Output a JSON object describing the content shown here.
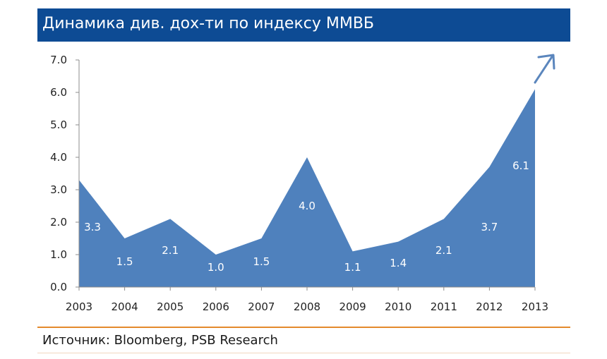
{
  "header": {
    "title": "Динамика див. дох-ти по индексу ММВБ"
  },
  "footer": {
    "source": "Источник: Bloomberg, PSB Research"
  },
  "colors": {
    "header_bg": "#0d4b94",
    "area_fill": "#4f81bd",
    "divider": "#e48a2c",
    "arrow": "#5b86bd"
  },
  "chart_data": {
    "type": "area",
    "categories": [
      "2003",
      "2004",
      "2005",
      "2006",
      "2007",
      "2008",
      "2009",
      "2010",
      "2011",
      "2012",
      "2013"
    ],
    "values": [
      3.3,
      1.5,
      2.1,
      1.0,
      1.5,
      4.0,
      1.1,
      1.4,
      2.1,
      3.7,
      6.1
    ],
    "data_labels": [
      "3.3",
      "1.5",
      "2.1",
      "1.0",
      "1.5",
      "4.0",
      "1.1",
      "1.4",
      "2.1",
      "3.7",
      "6.1"
    ],
    "y_ticks": [
      "0.0",
      "1.0",
      "2.0",
      "3.0",
      "4.0",
      "5.0",
      "6.0",
      "7.0"
    ],
    "ylim": [
      0,
      7
    ],
    "grid": false,
    "annotation": "up-arrow"
  }
}
